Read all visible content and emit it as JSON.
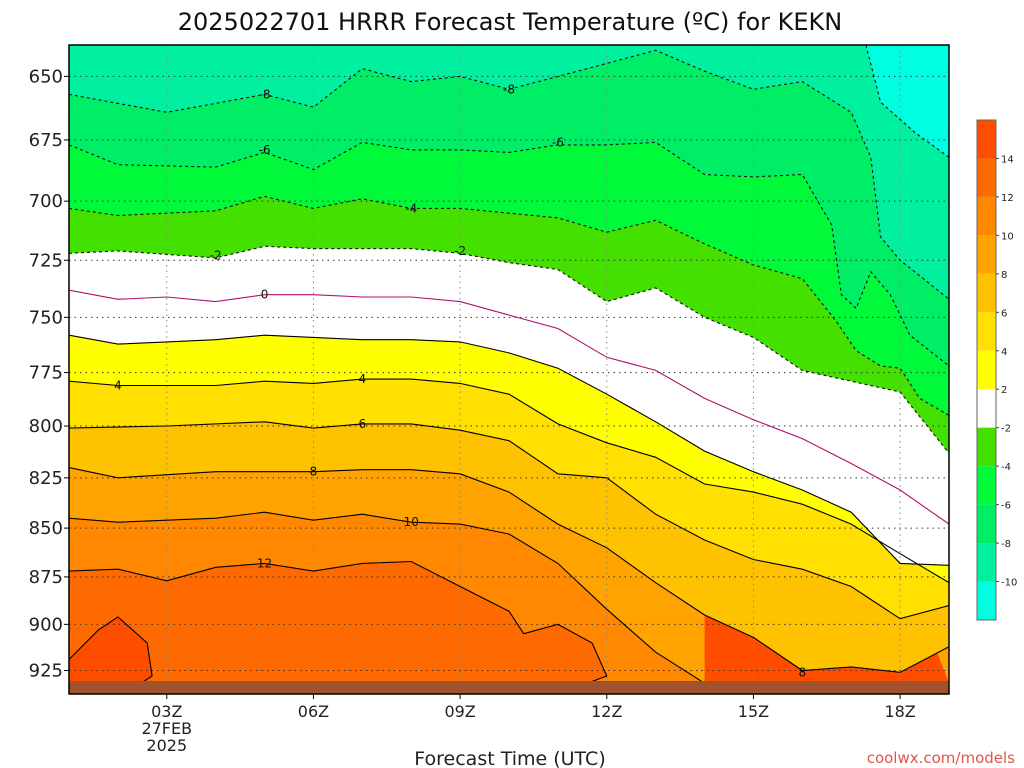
{
  "chart_data": {
    "type": "heatmap",
    "title": "2025022701 HRRR Forecast Temperature (ºC) for KEKN",
    "xlabel": "Forecast Time (UTC)",
    "ylabel": "",
    "y_axis": {
      "label_values": [
        650,
        675,
        700,
        725,
        750,
        775,
        800,
        825,
        850,
        875,
        900,
        925
      ],
      "range": [
        638,
        938
      ],
      "scale": "log-pressure"
    },
    "x_axis": {
      "range_hours": [
        1,
        19
      ],
      "ticks": [
        {
          "hour": 3,
          "label": "03Z",
          "sublabels": [
            "27FEB",
            "2025"
          ]
        },
        {
          "hour": 6,
          "label": "06Z",
          "sublabels": []
        },
        {
          "hour": 9,
          "label": "09Z",
          "sublabels": []
        },
        {
          "hour": 12,
          "label": "12Z",
          "sublabels": []
        },
        {
          "hour": 15,
          "label": "15Z",
          "sublabels": []
        },
        {
          "hour": 18,
          "label": "18Z",
          "sublabels": []
        }
      ]
    },
    "grid": true,
    "colorbar": {
      "ticks": [
        14,
        12,
        10,
        8,
        6,
        4,
        2,
        -2,
        -4,
        -6,
        -8,
        -10
      ],
      "bins": [
        {
          "range": [
            -12,
            -10
          ],
          "color": "#00ffe0"
        },
        {
          "range": [
            -10,
            -8
          ],
          "color": "#00f0a0"
        },
        {
          "range": [
            -8,
            -6
          ],
          "color": "#00ee66"
        },
        {
          "range": [
            -6,
            -4
          ],
          "color": "#00fa3a"
        },
        {
          "range": [
            -4,
            -2
          ],
          "color": "#44e000"
        },
        {
          "range": [
            -2,
            2
          ],
          "color": "#ffffff"
        },
        {
          "range": [
            2,
            4
          ],
          "color": "#ffff00"
        },
        {
          "range": [
            4,
            6
          ],
          "color": "#ffe000"
        },
        {
          "range": [
            6,
            8
          ],
          "color": "#ffc200"
        },
        {
          "range": [
            8,
            10
          ],
          "color": "#ffa300"
        },
        {
          "range": [
            10,
            12
          ],
          "color": "#ff8800"
        },
        {
          "range": [
            12,
            14
          ],
          "color": "#ff6a00"
        },
        {
          "range": [
            14,
            16
          ],
          "color": "#ff4d00"
        }
      ]
    },
    "contours": [
      {
        "level": -10,
        "color": "#00ffe0",
        "dashed": true,
        "label": "",
        "points": [
          [
            17.3,
            638
          ],
          [
            17.6,
            660
          ],
          [
            18.3,
            672
          ],
          [
            19,
            682
          ]
        ]
      },
      {
        "level": -8,
        "color": "#00f0a0",
        "dashed": true,
        "label": "-8",
        "label_at": [
          [
            5,
            657
          ],
          [
            10,
            655
          ]
        ],
        "points": [
          [
            1,
            657
          ],
          [
            3,
            664
          ],
          [
            5,
            657
          ],
          [
            6,
            662
          ],
          [
            7,
            647
          ],
          [
            8,
            652
          ],
          [
            9,
            650
          ],
          [
            10,
            655
          ],
          [
            11,
            650
          ],
          [
            12,
            645
          ],
          [
            13,
            640
          ],
          [
            14,
            648
          ],
          [
            15,
            655
          ],
          [
            16,
            652
          ],
          [
            17,
            664
          ],
          [
            17.4,
            682
          ],
          [
            17.6,
            715
          ],
          [
            18,
            725
          ],
          [
            18.3,
            730
          ],
          [
            19,
            742
          ]
        ]
      },
      {
        "level": -6,
        "color": "#00ee66",
        "dashed": true,
        "label": "-6",
        "label_at": [
          [
            5,
            679
          ],
          [
            11,
            676
          ]
        ],
        "points": [
          [
            1,
            677
          ],
          [
            2,
            685
          ],
          [
            4,
            686
          ],
          [
            5,
            680
          ],
          [
            6,
            687
          ],
          [
            7,
            676
          ],
          [
            8,
            679
          ],
          [
            9,
            679
          ],
          [
            10,
            680
          ],
          [
            11,
            677
          ],
          [
            12,
            677
          ],
          [
            13,
            676
          ],
          [
            14,
            689
          ],
          [
            15,
            690
          ],
          [
            16,
            689
          ],
          [
            16.6,
            710
          ],
          [
            16.8,
            740
          ],
          [
            17.1,
            746
          ],
          [
            17.4,
            730
          ],
          [
            17.8,
            740
          ],
          [
            18.2,
            758
          ],
          [
            19,
            772
          ]
        ]
      },
      {
        "level": -4,
        "color": "#44e000",
        "dashed": true,
        "label": "-4",
        "label_at": [
          [
            8,
            703
          ]
        ],
        "points": [
          [
            1,
            703
          ],
          [
            2,
            706
          ],
          [
            4,
            704
          ],
          [
            5,
            698
          ],
          [
            6,
            703
          ],
          [
            7,
            699
          ],
          [
            8,
            703
          ],
          [
            9,
            703
          ],
          [
            10,
            705
          ],
          [
            11,
            707
          ],
          [
            12,
            713
          ],
          [
            13,
            708
          ],
          [
            14,
            718
          ],
          [
            15,
            727
          ],
          [
            16,
            733
          ],
          [
            16.7,
            752
          ],
          [
            17.1,
            765
          ],
          [
            17.6,
            772
          ],
          [
            18,
            773
          ],
          [
            18.4,
            787
          ],
          [
            19,
            795
          ]
        ]
      },
      {
        "level": -2,
        "color": "#000000",
        "dashed": true,
        "label": "-2",
        "label_at": [
          [
            4,
            723
          ],
          [
            9,
            721
          ]
        ],
        "points": [
          [
            1,
            722
          ],
          [
            2,
            721
          ],
          [
            4,
            724
          ],
          [
            5,
            719
          ],
          [
            6,
            720
          ],
          [
            7,
            720
          ],
          [
            8,
            720
          ],
          [
            9,
            722
          ],
          [
            10,
            726
          ],
          [
            11,
            729
          ],
          [
            12,
            743
          ],
          [
            13,
            737
          ],
          [
            14,
            750
          ],
          [
            15,
            759
          ],
          [
            16,
            774
          ],
          [
            17,
            779
          ],
          [
            18,
            784
          ],
          [
            19,
            813
          ]
        ]
      },
      {
        "level": 0,
        "color": "#b0106c",
        "dashed": false,
        "label": "0",
        "label_at": [
          [
            5,
            740
          ]
        ],
        "points": [
          [
            1,
            738
          ],
          [
            2,
            742
          ],
          [
            3,
            741
          ],
          [
            4,
            743
          ],
          [
            5,
            740
          ],
          [
            6,
            740
          ],
          [
            7,
            741
          ],
          [
            8,
            741
          ],
          [
            9,
            743
          ],
          [
            10,
            749
          ],
          [
            11,
            755
          ],
          [
            12,
            768
          ],
          [
            13,
            774
          ],
          [
            14,
            787
          ],
          [
            15,
            797
          ],
          [
            16,
            806
          ],
          [
            17,
            818
          ],
          [
            18,
            831
          ],
          [
            19,
            848
          ]
        ]
      },
      {
        "level": 2,
        "color": "#000000",
        "dashed": false,
        "label": "",
        "points": [
          [
            1,
            758
          ],
          [
            2,
            762
          ],
          [
            3,
            761
          ],
          [
            4,
            760
          ],
          [
            5,
            758
          ],
          [
            6,
            759
          ],
          [
            7,
            760
          ],
          [
            8,
            760
          ],
          [
            9,
            761
          ],
          [
            10,
            766
          ],
          [
            11,
            773
          ],
          [
            12,
            785
          ],
          [
            13,
            798
          ],
          [
            14,
            812
          ],
          [
            15,
            822
          ],
          [
            16,
            831
          ],
          [
            17,
            842
          ],
          [
            18,
            868
          ],
          [
            19,
            869
          ]
        ]
      },
      {
        "level": 4,
        "color": "#000000",
        "dashed": false,
        "label": "4",
        "label_at": [
          [
            2,
            781
          ],
          [
            7,
            778
          ]
        ],
        "points": [
          [
            1,
            779
          ],
          [
            2,
            781
          ],
          [
            4,
            781
          ],
          [
            5,
            779
          ],
          [
            6,
            780
          ],
          [
            7,
            778
          ],
          [
            8,
            778
          ],
          [
            9,
            780
          ],
          [
            10,
            785
          ],
          [
            11,
            799
          ],
          [
            12,
            808
          ],
          [
            13,
            815
          ],
          [
            14,
            828
          ],
          [
            15,
            832
          ],
          [
            16,
            838
          ],
          [
            17,
            848
          ],
          [
            18,
            863
          ],
          [
            19,
            878
          ]
        ]
      },
      {
        "level": 6,
        "color": "#000000",
        "dashed": false,
        "label": "6",
        "label_at": [
          [
            7,
            799
          ]
        ],
        "points": [
          [
            1,
            801
          ],
          [
            3,
            800
          ],
          [
            5,
            798
          ],
          [
            6,
            801
          ],
          [
            7,
            799
          ],
          [
            8,
            799
          ],
          [
            9,
            802
          ],
          [
            10,
            807
          ],
          [
            11,
            823
          ],
          [
            12,
            825
          ],
          [
            13,
            843
          ],
          [
            14,
            856
          ],
          [
            15,
            866
          ],
          [
            16,
            871
          ],
          [
            17,
            880
          ],
          [
            18,
            897
          ],
          [
            19,
            890
          ]
        ]
      },
      {
        "level": 8,
        "color": "#000000",
        "dashed": false,
        "label": "8",
        "label_at": [
          [
            6,
            822
          ],
          [
            16,
            926
          ]
        ],
        "points": [
          [
            1,
            820
          ],
          [
            2,
            825
          ],
          [
            4,
            822
          ],
          [
            6,
            822
          ],
          [
            7,
            821
          ],
          [
            8,
            821
          ],
          [
            9,
            823
          ],
          [
            10,
            832
          ],
          [
            11,
            848
          ],
          [
            12,
            860
          ],
          [
            13,
            878
          ],
          [
            14,
            895
          ],
          [
            15,
            907
          ],
          [
            16,
            925
          ],
          [
            17,
            923
          ],
          [
            18,
            926
          ],
          [
            19,
            912
          ]
        ]
      },
      {
        "level": 10,
        "color": "#000000",
        "dashed": false,
        "label": "10",
        "label_at": [
          [
            8,
            847
          ]
        ],
        "points": [
          [
            1,
            845
          ],
          [
            2,
            847
          ],
          [
            4,
            845
          ],
          [
            5,
            842
          ],
          [
            6,
            846
          ],
          [
            7,
            843
          ],
          [
            8,
            847
          ],
          [
            9,
            848
          ],
          [
            10,
            853
          ],
          [
            11,
            868
          ],
          [
            12,
            892
          ],
          [
            13,
            915
          ],
          [
            14,
            932
          ]
        ]
      },
      {
        "level": 12,
        "color": "#000000",
        "dashed": false,
        "label": "12",
        "label_at": [
          [
            5,
            868
          ]
        ],
        "points": [
          [
            1,
            872
          ],
          [
            2,
            871
          ],
          [
            3,
            877
          ],
          [
            4,
            870
          ],
          [
            5,
            868
          ],
          [
            6,
            872
          ],
          [
            7,
            868
          ],
          [
            8,
            867
          ],
          [
            9,
            880
          ],
          [
            10,
            893
          ],
          [
            10.3,
            905
          ],
          [
            11,
            900
          ],
          [
            11.7,
            910
          ],
          [
            12,
            928
          ],
          [
            11.5,
            933
          ],
          [
            10,
            934
          ],
          [
            8,
            934
          ],
          [
            7,
            932
          ],
          [
            6,
            935
          ],
          [
            4,
            938
          ]
        ]
      },
      {
        "level": 14,
        "color": "#000000",
        "dashed": false,
        "label": "",
        "points": [
          [
            1,
            919
          ],
          [
            1.6,
            903
          ],
          [
            2,
            896
          ],
          [
            2.6,
            910
          ],
          [
            2.7,
            928
          ],
          [
            2.3,
            935
          ],
          [
            1.4,
            938
          ],
          [
            1,
            937
          ]
        ]
      }
    ],
    "terrain": {
      "color": "#a0522d",
      "label": ""
    },
    "credit": "coolwx.com/models"
  }
}
